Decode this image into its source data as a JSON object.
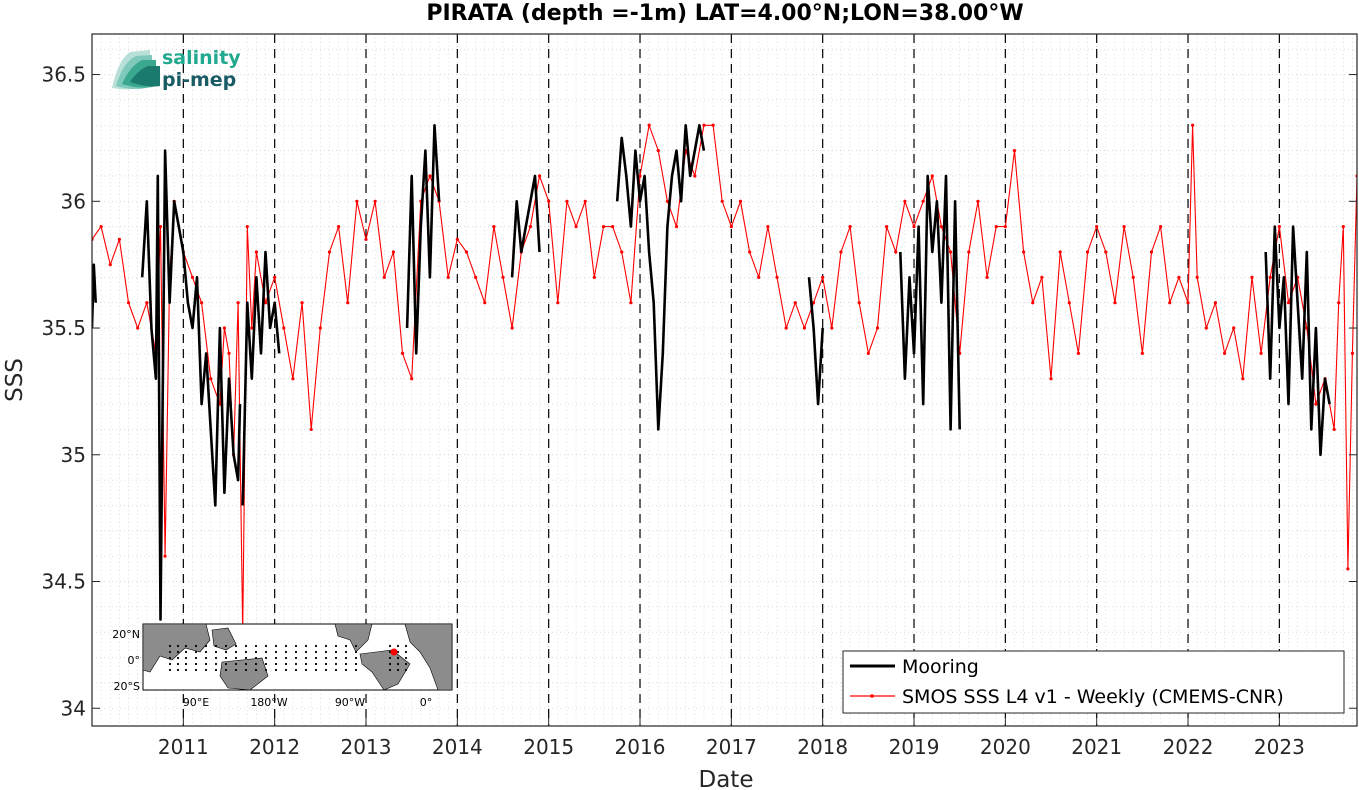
{
  "logo": {
    "line1": "salinity",
    "line2": "pi-mep"
  },
  "chart_data": {
    "type": "line",
    "title": "PIRATA (depth =-1m) LAT=4.00°N;LON=38.00°W",
    "xlabel": "Date",
    "ylabel": "SSS",
    "xlim": [
      2010.0,
      2023.85
    ],
    "ylim": [
      33.93,
      36.66
    ],
    "yticks": [
      34,
      34.5,
      35,
      35.5,
      36,
      36.5
    ],
    "ytick_labels": [
      "34",
      "34.5",
      "35",
      "35.5",
      "36",
      "36.5"
    ],
    "xticks": [
      2011,
      2012,
      2013,
      2014,
      2015,
      2016,
      2017,
      2018,
      2019,
      2020,
      2021,
      2022,
      2023
    ],
    "xtick_labels": [
      "2011",
      "2012",
      "2013",
      "2014",
      "2015",
      "2016",
      "2017",
      "2018",
      "2019",
      "2020",
      "2021",
      "2022",
      "2023"
    ],
    "year_boundaries": [
      2011,
      2012,
      2013,
      2014,
      2015,
      2016,
      2017,
      2018,
      2019,
      2020,
      2021,
      2022,
      2023
    ],
    "grid": "on (dotted minor)",
    "legend_position": "bottom-right",
    "series": [
      {
        "name": "SMOS SSS L4 v1 - Weekly (CMEMS-CNR)",
        "color": "#ff0000",
        "marker": "dot",
        "x": [
          2010.0,
          2010.1,
          2010.2,
          2010.3,
          2010.4,
          2010.5,
          2010.6,
          2010.7,
          2010.75,
          2010.8,
          2010.85,
          2010.9,
          2011.0,
          2011.1,
          2011.2,
          2011.3,
          2011.4,
          2011.45,
          2011.5,
          2011.55,
          2011.6,
          2011.65,
          2011.7,
          2011.75,
          2011.8,
          2011.9,
          2012.0,
          2012.1,
          2012.2,
          2012.3,
          2012.4,
          2012.5,
          2012.6,
          2012.7,
          2012.8,
          2012.9,
          2013.0,
          2013.1,
          2013.2,
          2013.3,
          2013.4,
          2013.5,
          2013.6,
          2013.7,
          2013.8,
          2013.9,
          2014.0,
          2014.1,
          2014.2,
          2014.3,
          2014.4,
          2014.5,
          2014.6,
          2014.7,
          2014.8,
          2014.9,
          2015.0,
          2015.1,
          2015.2,
          2015.3,
          2015.4,
          2015.5,
          2015.6,
          2015.7,
          2015.8,
          2015.9,
          2016.0,
          2016.1,
          2016.2,
          2016.3,
          2016.4,
          2016.5,
          2016.6,
          2016.7,
          2016.8,
          2016.9,
          2017.0,
          2017.1,
          2017.2,
          2017.3,
          2017.4,
          2017.5,
          2017.6,
          2017.7,
          2017.8,
          2017.9,
          2018.0,
          2018.1,
          2018.2,
          2018.3,
          2018.4,
          2018.5,
          2018.6,
          2018.7,
          2018.8,
          2018.9,
          2019.0,
          2019.1,
          2019.2,
          2019.3,
          2019.4,
          2019.5,
          2019.6,
          2019.7,
          2019.8,
          2019.9,
          2020.0,
          2020.1,
          2020.2,
          2020.3,
          2020.4,
          2020.5,
          2020.6,
          2020.7,
          2020.8,
          2020.9,
          2021.0,
          2021.1,
          2021.2,
          2021.3,
          2021.4,
          2021.5,
          2021.6,
          2021.7,
          2021.8,
          2021.9,
          2022.0,
          2022.05,
          2022.1,
          2022.2,
          2022.3,
          2022.4,
          2022.5,
          2022.6,
          2022.7,
          2022.8,
          2022.9,
          2023.0,
          2023.1,
          2023.2,
          2023.3,
          2023.4,
          2023.5,
          2023.6,
          2023.65,
          2023.7,
          2023.75,
          2023.8,
          2023.85
        ],
        "y": [
          35.85,
          35.9,
          35.75,
          35.85,
          35.6,
          35.5,
          35.6,
          35.4,
          35.9,
          34.6,
          35.7,
          36.0,
          35.8,
          35.7,
          35.6,
          35.3,
          35.2,
          35.5,
          35.4,
          35.0,
          35.6,
          34.3,
          35.9,
          35.5,
          35.8,
          35.6,
          35.7,
          35.5,
          35.3,
          35.6,
          35.1,
          35.5,
          35.8,
          35.9,
          35.6,
          36.0,
          35.85,
          36.0,
          35.7,
          35.8,
          35.4,
          35.3,
          36.0,
          36.1,
          36.0,
          35.7,
          35.85,
          35.8,
          35.7,
          35.6,
          35.9,
          35.7,
          35.5,
          35.8,
          35.9,
          36.1,
          36.0,
          35.6,
          36.0,
          35.9,
          36.0,
          35.7,
          35.9,
          35.9,
          35.8,
          35.6,
          36.1,
          36.3,
          36.2,
          36.0,
          35.9,
          36.2,
          36.1,
          36.3,
          36.3,
          36.0,
          35.9,
          36.0,
          35.8,
          35.7,
          35.9,
          35.7,
          35.5,
          35.6,
          35.5,
          35.6,
          35.7,
          35.5,
          35.8,
          35.9,
          35.6,
          35.4,
          35.5,
          35.9,
          35.8,
          36.0,
          35.9,
          36.0,
          36.1,
          35.9,
          35.8,
          35.4,
          35.8,
          36.0,
          35.7,
          35.9,
          35.9,
          36.2,
          35.8,
          35.6,
          35.7,
          35.3,
          35.8,
          35.6,
          35.4,
          35.8,
          35.9,
          35.8,
          35.6,
          35.9,
          35.7,
          35.4,
          35.8,
          35.9,
          35.6,
          35.7,
          35.6,
          36.3,
          35.7,
          35.5,
          35.6,
          35.4,
          35.5,
          35.3,
          35.7,
          35.4,
          35.7,
          35.9,
          35.6,
          35.7,
          35.5,
          35.2,
          35.3,
          35.1,
          35.6,
          35.9,
          34.55,
          35.4,
          36.1
        ]
      },
      {
        "name": "Mooring",
        "color": "#000000",
        "segments": [
          {
            "x": [
              2010.0,
              2010.02,
              2010.04
            ],
            "y": [
              35.5,
              35.75,
              35.6
            ]
          },
          {
            "x": [
              2010.55,
              2010.6,
              2010.65,
              2010.7,
              2010.72,
              2010.75,
              2010.8,
              2010.85,
              2010.9,
              2010.95,
              2011.0,
              2011.05,
              2011.1,
              2011.15,
              2011.2,
              2011.25,
              2011.3,
              2011.35,
              2011.4,
              2011.45,
              2011.5,
              2011.55,
              2011.6,
              2011.62
            ],
            "y": [
              35.7,
              36.0,
              35.5,
              35.3,
              36.1,
              34.35,
              36.2,
              35.6,
              36.0,
              35.9,
              35.8,
              35.6,
              35.5,
              35.7,
              35.2,
              35.4,
              35.1,
              34.8,
              35.5,
              34.85,
              35.3,
              35.0,
              34.9,
              35.2
            ]
          },
          {
            "x": [
              2011.65,
              2011.7,
              2011.75,
              2011.8,
              2011.85,
              2011.9,
              2011.95,
              2012.0,
              2012.05
            ],
            "y": [
              34.8,
              35.6,
              35.3,
              35.7,
              35.4,
              35.8,
              35.5,
              35.6,
              35.4
            ]
          },
          {
            "x": [
              2013.45,
              2013.5,
              2013.55,
              2013.6,
              2013.65,
              2013.7,
              2013.75,
              2013.8
            ],
            "y": [
              35.5,
              36.1,
              35.4,
              35.9,
              36.2,
              35.7,
              36.3,
              36.0
            ]
          },
          {
            "x": [
              2014.6,
              2014.65,
              2014.7,
              2014.75,
              2014.8,
              2014.85,
              2014.9
            ],
            "y": [
              35.7,
              36.0,
              35.8,
              35.9,
              36.0,
              36.1,
              35.8
            ]
          },
          {
            "x": [
              2015.75,
              2015.8,
              2015.85,
              2015.9,
              2015.95,
              2016.0,
              2016.05,
              2016.1,
              2016.15,
              2016.2,
              2016.25,
              2016.3,
              2016.35,
              2016.4,
              2016.45,
              2016.5,
              2016.55,
              2016.6,
              2016.65,
              2016.7
            ],
            "y": [
              36.0,
              36.25,
              36.1,
              35.9,
              36.2,
              36.0,
              36.1,
              35.8,
              35.6,
              35.1,
              35.4,
              35.9,
              36.1,
              36.2,
              36.0,
              36.3,
              36.1,
              36.2,
              36.3,
              36.2
            ]
          },
          {
            "x": [
              2017.85,
              2017.9,
              2017.95,
              2018.0
            ],
            "y": [
              35.7,
              35.5,
              35.2,
              35.5
            ]
          },
          {
            "x": [
              2018.85,
              2018.9,
              2018.95,
              2019.0,
              2019.05,
              2019.1,
              2019.15,
              2019.2,
              2019.25,
              2019.3,
              2019.35,
              2019.4,
              2019.45,
              2019.5
            ],
            "y": [
              35.8,
              35.3,
              35.7,
              35.4,
              35.9,
              35.2,
              36.1,
              35.8,
              36.0,
              35.6,
              36.1,
              35.1,
              36.0,
              35.1
            ]
          },
          {
            "x": [
              2022.85,
              2022.9,
              2022.95,
              2023.0,
              2023.05,
              2023.1,
              2023.15,
              2023.2,
              2023.25,
              2023.3,
              2023.35,
              2023.4,
              2023.45,
              2023.5,
              2023.55
            ],
            "y": [
              35.8,
              35.3,
              35.9,
              35.5,
              35.7,
              35.2,
              35.9,
              35.6,
              35.3,
              35.8,
              35.1,
              35.5,
              35.0,
              35.3,
              35.2
            ]
          }
        ]
      }
    ],
    "legend": [
      "Mooring",
      "SMOS SSS L4 v1 - Weekly (CMEMS-CNR)"
    ]
  },
  "inset_map": {
    "lat_labels": [
      "20°N",
      "0°",
      "20°S"
    ],
    "lon_labels": [
      "90°E",
      "180°W",
      "90°W",
      "0°"
    ],
    "marker_color": "#ff0000"
  }
}
